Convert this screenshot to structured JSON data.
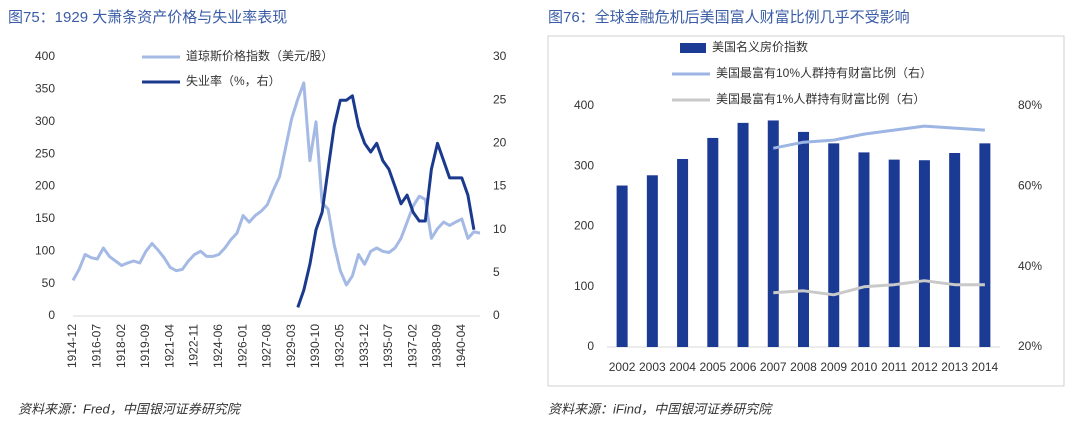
{
  "chart_data": [
    {
      "type": "line",
      "title": "图75：1929 大萧条资产价格与失业率表现",
      "source": "资料来源：Fred，中国银河证券研究院",
      "categories": [
        "1914-12",
        null,
        null,
        null,
        "1916-07",
        null,
        null,
        null,
        "1918-02",
        null,
        null,
        null,
        "1919-09",
        null,
        null,
        null,
        "1921-04",
        null,
        null,
        null,
        "1922-11",
        null,
        null,
        null,
        "1924-06",
        null,
        null,
        null,
        "1926-01",
        null,
        null,
        null,
        "1927-08",
        null,
        null,
        null,
        "1929-03",
        null,
        null,
        null,
        "1930-10",
        null,
        null,
        null,
        "1932-05",
        null,
        null,
        null,
        "1933-12",
        null,
        null,
        null,
        "1935-07",
        null,
        null,
        null,
        "1937-02",
        null,
        null,
        null,
        "1938-09",
        null,
        null,
        null,
        "1940-04",
        null,
        null,
        null
      ],
      "series": [
        {
          "name": "道琼斯价格指数（美元/股）",
          "color": "#a4b9e4",
          "values": [
            55,
            72,
            95,
            90,
            88,
            105,
            92,
            85,
            78,
            82,
            85,
            82,
            100,
            112,
            102,
            90,
            75,
            70,
            72,
            85,
            95,
            100,
            92,
            92,
            95,
            105,
            118,
            128,
            155,
            145,
            155,
            162,
            172,
            195,
            215,
            260,
            305,
            335,
            360,
            240,
            300,
            175,
            165,
            110,
            70,
            48,
            62,
            95,
            80,
            100,
            105,
            100,
            98,
            105,
            120,
            145,
            170,
            185,
            180,
            120,
            135,
            145,
            140,
            145,
            150,
            120,
            130,
            128
          ]
        },
        {
          "name": "失业率（%，右）",
          "color": "#1b3a8e",
          "axis": "y2",
          "values": [
            null,
            null,
            null,
            null,
            null,
            null,
            null,
            null,
            null,
            null,
            null,
            null,
            null,
            null,
            null,
            null,
            null,
            null,
            null,
            null,
            null,
            null,
            null,
            null,
            null,
            null,
            null,
            null,
            null,
            null,
            null,
            null,
            null,
            null,
            null,
            null,
            null,
            1,
            3,
            6,
            10,
            12,
            17,
            22,
            25,
            25,
            25.5,
            22,
            20,
            19,
            20,
            18,
            17,
            15,
            13,
            14,
            12,
            11,
            11,
            17,
            20,
            18,
            16,
            16,
            16,
            14,
            10,
            null
          ]
        }
      ],
      "ylim": [
        0,
        400
      ],
      "yticks": [
        0,
        50,
        100,
        150,
        200,
        250,
        300,
        350,
        400
      ],
      "y2lim": [
        0,
        30
      ],
      "y2ticks": [
        0,
        5,
        10,
        15,
        20,
        25,
        30
      ]
    },
    {
      "type": "bar",
      "title": "图76：全球金融危机后美国富人财富比例几乎不受影响",
      "source": "资料来源：iFind，中国银河证券研究院",
      "categories": [
        "2002",
        "2003",
        "2004",
        "2005",
        "2006",
        "2007",
        "2008",
        "2009",
        "2010",
        "2011",
        "2012",
        "2013",
        "2014"
      ],
      "series": [
        {
          "name": "美国名义房价指数",
          "type": "bar",
          "color": "#1a3a94",
          "values": [
            268,
            285,
            312,
            347,
            372,
            376,
            357,
            338,
            323,
            311,
            310,
            322,
            338
          ]
        },
        {
          "name": "美国最富有10%人群持有财富比例（右）",
          "type": "line",
          "color": "#9db5e3",
          "axis": "y2",
          "values": [
            null,
            null,
            null,
            null,
            null,
            69.5,
            71,
            71.5,
            73,
            74,
            75,
            74.5,
            74
          ]
        },
        {
          "name": "美国最富有1%人群持有财富比例（右）",
          "type": "line",
          "color": "#c9c9c9",
          "axis": "y2",
          "values": [
            null,
            null,
            null,
            null,
            null,
            33.5,
            34,
            33,
            35,
            35.5,
            36.5,
            35.5,
            35.5
          ]
        }
      ],
      "ylim": [
        0,
        400
      ],
      "yticks": [
        0,
        100,
        200,
        300,
        400
      ],
      "y2lim": [
        20,
        80
      ],
      "y2ticks": [
        {
          "value": 20,
          "label": "20%"
        },
        {
          "value": 40,
          "label": "40%"
        },
        {
          "value": 60,
          "label": "60%"
        },
        {
          "value": 80,
          "label": "80%"
        }
      ]
    }
  ]
}
